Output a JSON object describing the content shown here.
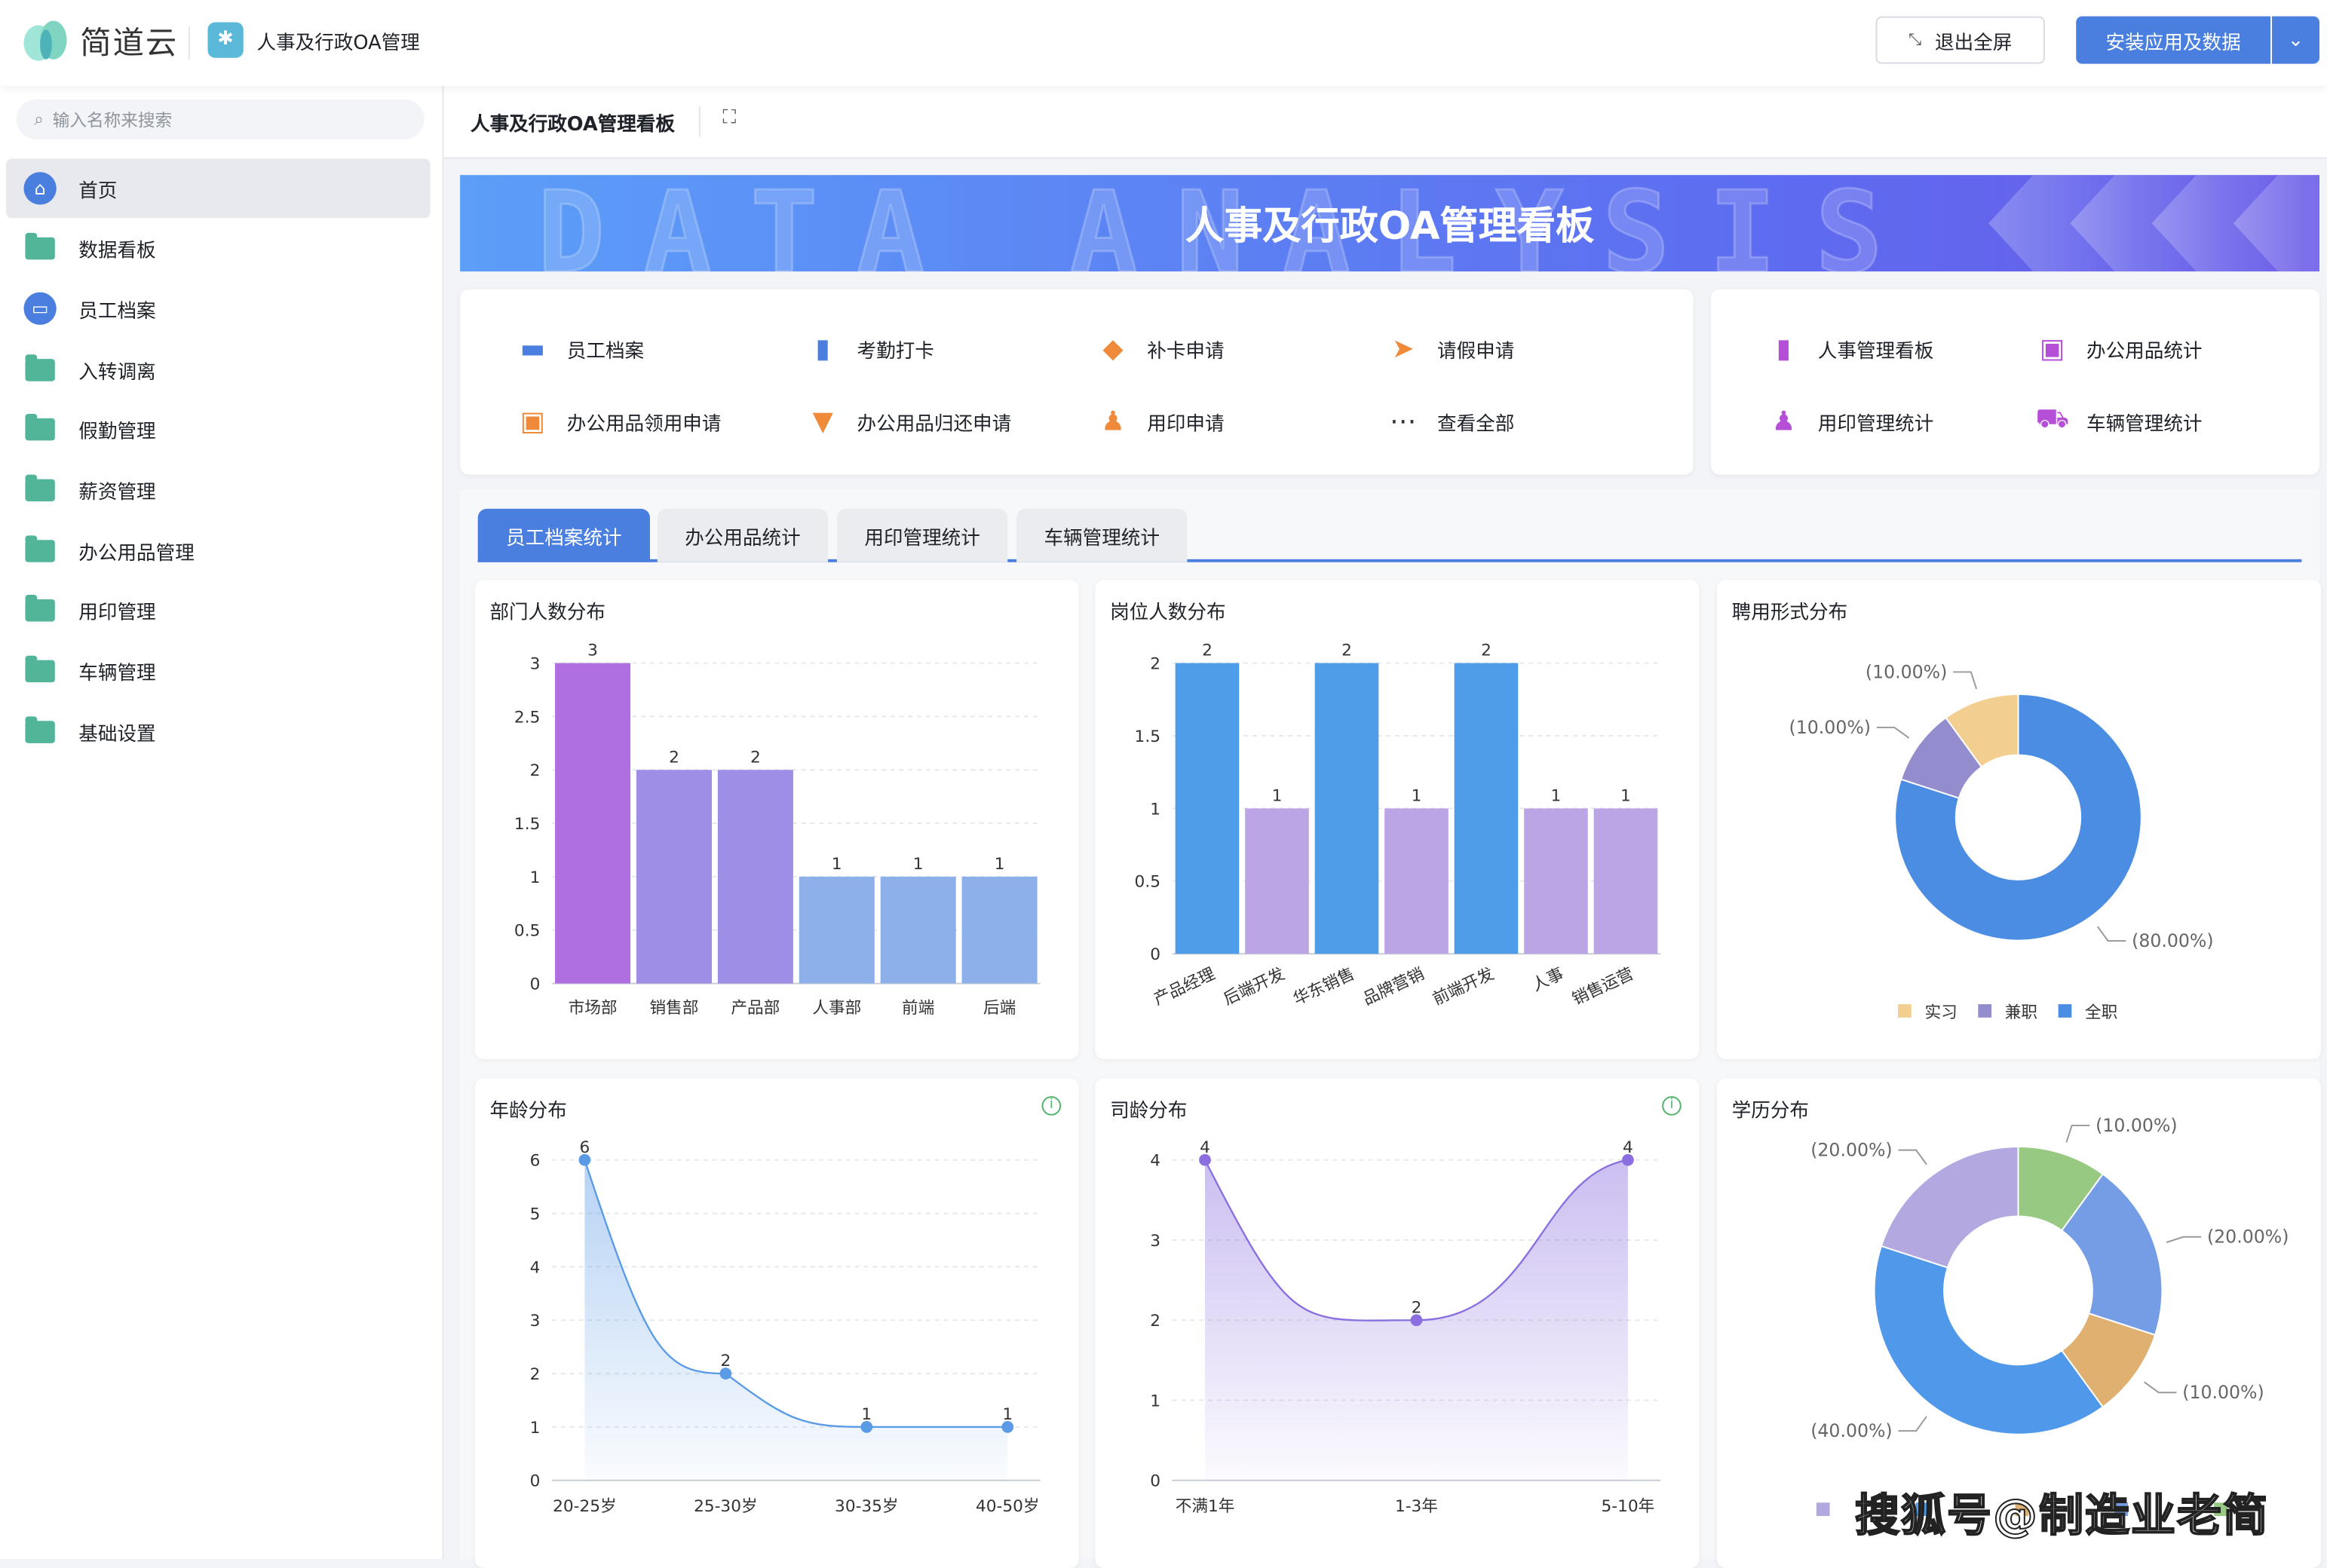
{
  "header": {
    "brand": "简道云",
    "app_title": "人事及行政OA管理",
    "exit_fullscreen": "退出全屏",
    "install": "安装应用及数据"
  },
  "sidebar": {
    "search_placeholder": "输入名称来搜索",
    "items": [
      {
        "label": "首页",
        "icon": "home-icon",
        "active": true
      },
      {
        "label": "数据看板",
        "icon": "folder-icon"
      },
      {
        "label": "员工档案",
        "icon": "id-card-icon"
      },
      {
        "label": "入转调离",
        "icon": "folder-icon"
      },
      {
        "label": "假勤管理",
        "icon": "folder-icon"
      },
      {
        "label": "薪资管理",
        "icon": "folder-icon"
      },
      {
        "label": "办公用品管理",
        "icon": "folder-icon"
      },
      {
        "label": "用印管理",
        "icon": "folder-icon"
      },
      {
        "label": "车辆管理",
        "icon": "folder-icon"
      },
      {
        "label": "基础设置",
        "icon": "folder-icon"
      }
    ]
  },
  "page": {
    "title": "人事及行政OA管理看板",
    "banner_title": "人事及行政OA管理看板",
    "banner_bg_text": "DATA ANALYSIS"
  },
  "shortcuts": [
    {
      "label": "员工档案",
      "icon": "id-card-icon",
      "color": "#4a7fe0"
    },
    {
      "label": "考勤打卡",
      "icon": "bookmark-icon",
      "color": "#4a7fe0"
    },
    {
      "label": "补卡申请",
      "icon": "tag-icon",
      "color": "#ee8a3a"
    },
    {
      "label": "请假申请",
      "icon": "send-icon",
      "color": "#ee8a3a"
    },
    {
      "label": "办公用品领用申请",
      "icon": "box-icon",
      "color": "#ee8a3a"
    },
    {
      "label": "办公用品归还申请",
      "icon": "inbox-icon",
      "color": "#ee8a3a"
    },
    {
      "label": "用印申请",
      "icon": "stamp-icon",
      "color": "#ee8a3a"
    },
    {
      "label": "查看全部",
      "icon": "more-icon",
      "color": "#333"
    }
  ],
  "reports": [
    {
      "label": "人事管理看板",
      "icon": "bar-chart-icon"
    },
    {
      "label": "办公用品统计",
      "icon": "box-icon"
    },
    {
      "label": "用印管理统计",
      "icon": "stamp-icon"
    },
    {
      "label": "车辆管理统计",
      "icon": "truck-icon"
    }
  ],
  "report_color": "#b64fd8",
  "tabs": [
    {
      "label": "员工档案统计",
      "active": true
    },
    {
      "label": "办公用品统计"
    },
    {
      "label": "用印管理统计"
    },
    {
      "label": "车辆管理统计"
    }
  ],
  "chart_data": [
    {
      "id": "dept",
      "type": "bar",
      "title": "部门人数分布",
      "categories": [
        "市场部",
        "销售部",
        "产品部",
        "人事部",
        "前端",
        "后端"
      ],
      "values": [
        3,
        2,
        2,
        1,
        1,
        1
      ],
      "colors": [
        "#b06fe0",
        "#9e8ee6",
        "#9e8ee6",
        "#8eb0ea",
        "#8eb0ea",
        "#8eb0ea"
      ],
      "ylim": [
        0,
        3
      ],
      "yticks": [
        "0",
        "0.5",
        "1",
        "1.5",
        "2",
        "2.5",
        "3"
      ],
      "grid": true
    },
    {
      "id": "post",
      "type": "bar",
      "title": "岗位人数分布",
      "categories": [
        "产品经理",
        "后端开发",
        "华东销售",
        "品牌营销",
        "前端开发",
        "人事",
        "销售运营"
      ],
      "values": [
        2,
        1,
        2,
        1,
        2,
        1,
        1
      ],
      "colors": [
        "#4f9de9",
        "#bba5e5",
        "#4f9de9",
        "#bba5e5",
        "#4f9de9",
        "#bba5e5",
        "#bba5e5"
      ],
      "ylim": [
        0,
        2
      ],
      "yticks": [
        "0",
        "0.5",
        "1",
        "1.5",
        "2"
      ],
      "grid": true
    },
    {
      "id": "employ",
      "type": "pie",
      "title": "聘用形式分布",
      "slices": [
        {
          "name": "全职",
          "value": 80,
          "label": "(80.00%)",
          "color": "#4a8de3"
        },
        {
          "name": "兼职",
          "value": 10,
          "label": "(10.00%)",
          "color": "#948dcd"
        },
        {
          "name": "实习",
          "value": 10,
          "label": "(10.00%)",
          "color": "#f2cf90"
        }
      ],
      "legend": [
        "实习",
        "兼职",
        "全职"
      ],
      "legend_position": "bottom"
    },
    {
      "id": "age",
      "type": "area",
      "title": "年龄分布",
      "categories": [
        "20-25岁",
        "25-30岁",
        "30-35岁",
        "40-50岁"
      ],
      "values": [
        6,
        2,
        1,
        1
      ],
      "ylim": [
        0,
        6
      ],
      "yticks": [
        "0",
        "1",
        "2",
        "3",
        "4",
        "5",
        "6"
      ],
      "color": "#5b9be6",
      "grid": true
    },
    {
      "id": "tenure",
      "type": "area",
      "title": "司龄分布",
      "categories": [
        "不满1年",
        "1-3年",
        "5-10年"
      ],
      "values": [
        4,
        2,
        4
      ],
      "ylim": [
        0,
        4
      ],
      "yticks": [
        "0",
        "1",
        "2",
        "3",
        "4"
      ],
      "color": "#8b6fe0",
      "grid": true
    },
    {
      "id": "edu",
      "type": "pie",
      "title": "学历分布",
      "slices": [
        {
          "value": 10,
          "label": "(10.00%)",
          "color": "#98c982"
        },
        {
          "value": 20,
          "label": "(20.00%)",
          "color": "#759de5"
        },
        {
          "value": 10,
          "label": "(10.00%)",
          "color": "#e0b071"
        },
        {
          "value": 40,
          "label": "(40.00%)",
          "color": "#5099ea"
        },
        {
          "value": 20,
          "label": "(20.00%)",
          "color": "#b3a8e0"
        }
      ],
      "legend_position": "bottom"
    }
  ],
  "watermark": "搜狐号@制造业老简"
}
